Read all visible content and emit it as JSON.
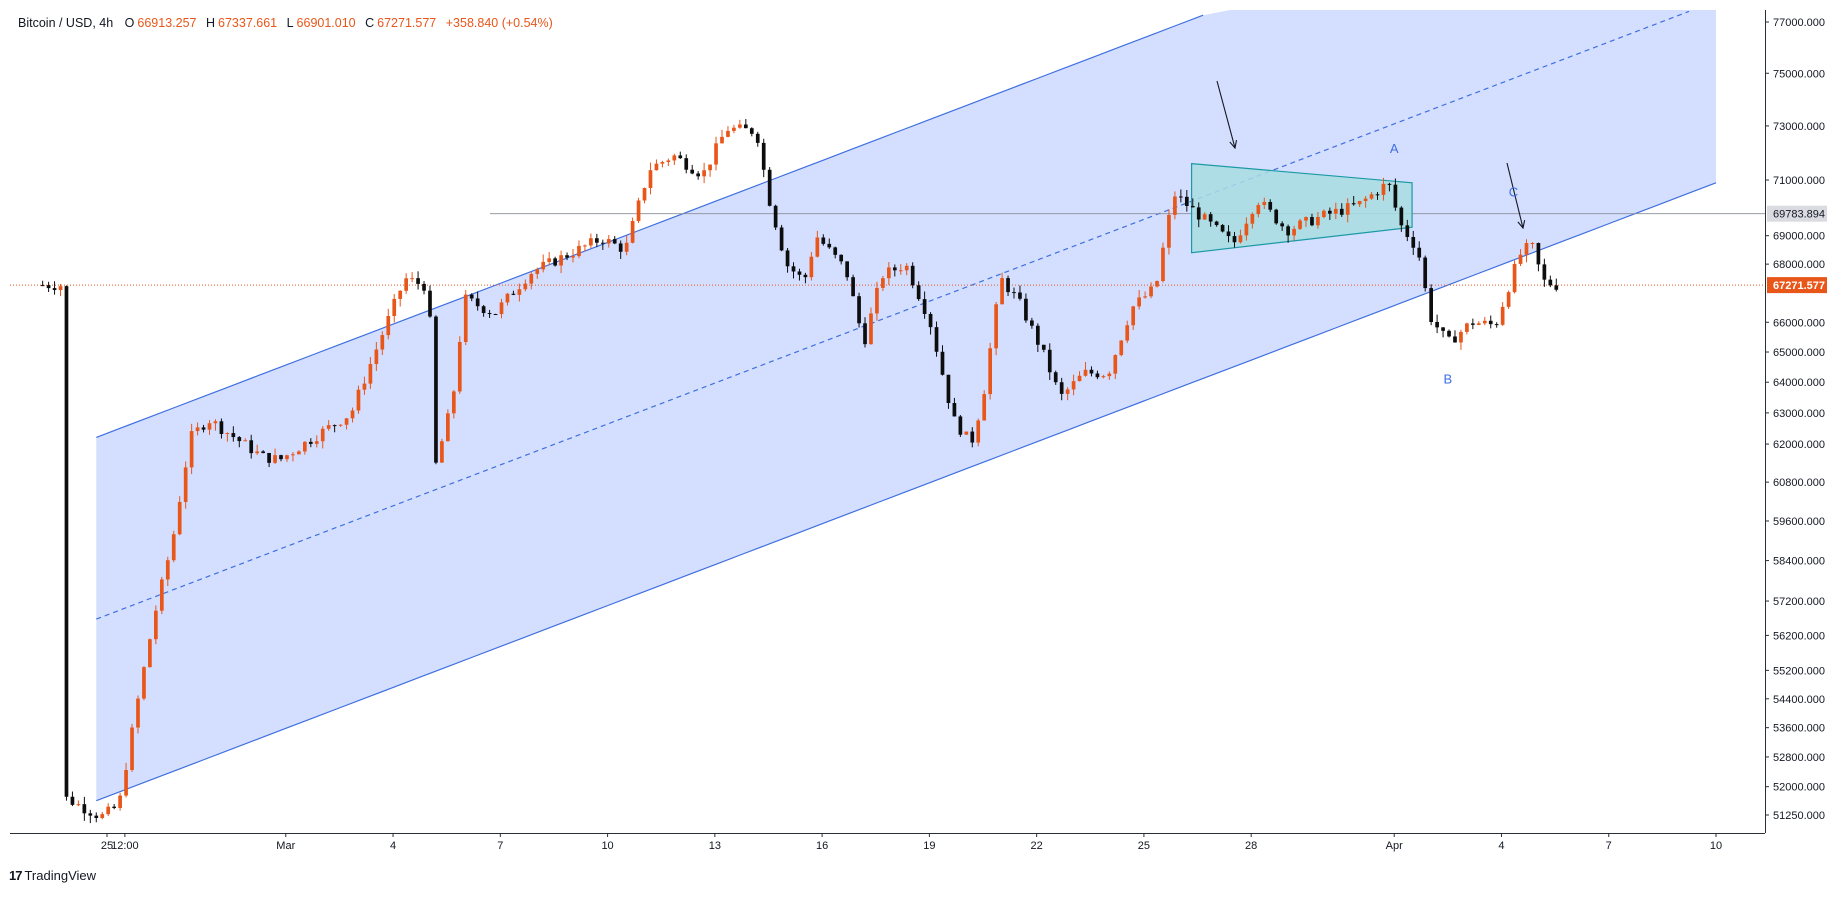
{
  "legend": {
    "symbol": "Bitcoin / USD, 4h",
    "open_label": "O",
    "open": "66913.257",
    "high_label": "H",
    "high": "67337.661",
    "low_label": "L",
    "low": "66901.010",
    "close_label": "C",
    "close": "67271.577",
    "change": "+358.840 (+0.54%)"
  },
  "brand": {
    "name": "TradingView",
    "icon": "tradingview-logo-icon"
  },
  "colors": {
    "up": "#e8561a",
    "down": "#0d0d0d",
    "channel_fill": "#cfdcff",
    "channel_line": "#3f6fe0",
    "triangle_fill": "#a8dde2",
    "triangle_line": "#1b9aa5",
    "price_line": "#e8561a",
    "label_blue": "#3f6fe0"
  },
  "chart_data": {
    "type": "candlestick",
    "title": "Bitcoin / USD, 4h",
    "y_axis_ticks": [
      "77000.000",
      "75000.000",
      "73000.000",
      "71000.000",
      "69000.000",
      "68000.000",
      "66000.000",
      "65000.000",
      "64000.000",
      "63000.000",
      "62000.000",
      "60800.000",
      "59600.000",
      "58400.000",
      "57200.000",
      "56200.000",
      "55200.000",
      "54400.000",
      "53600.000",
      "52800.000",
      "52000.000",
      "51250.000"
    ],
    "x_axis_ticks": [
      "25",
      "12:00",
      "Mar",
      "4",
      "7",
      "10",
      "13",
      "16",
      "19",
      "22",
      "25",
      "28",
      "Apr",
      "4",
      "7",
      "10"
    ],
    "ylim": [
      50700,
      77600
    ],
    "scale": "log",
    "price_marker": {
      "label": "67271.577",
      "value": 67271.577
    },
    "level_marker": {
      "label": "69783.894",
      "value": 69783.894
    },
    "wave_labels": [
      {
        "text": "A",
        "date": "Apr 1",
        "price": 72000
      },
      {
        "text": "B",
        "date": "Apr 2",
        "price": 63950
      },
      {
        "text": "C",
        "date": "Apr 4",
        "price": 70400
      }
    ],
    "candle_keypoints": [
      {
        "time": "Feb 24 00:00",
        "price": 51700
      },
      {
        "time": "Feb 25 00:00",
        "price": 51200
      },
      {
        "time": "Feb 25 12:00",
        "price": 51500
      },
      {
        "time": "Feb 26 00:00",
        "price": 54200
      },
      {
        "time": "Feb 26 12:00",
        "price": 56800
      },
      {
        "time": "Feb 27 00:00",
        "price": 59000
      },
      {
        "time": "Feb 27 12:00",
        "price": 62200
      },
      {
        "time": "Feb 28 00:00",
        "price": 62800
      },
      {
        "time": "Feb 29 12:00",
        "price": 61600
      },
      {
        "time": "Mar 1 00:00",
        "price": 61500
      },
      {
        "time": "Mar 3 00:00",
        "price": 63000
      },
      {
        "time": "Mar 4 12:00",
        "price": 67500
      },
      {
        "time": "Mar 5 04:00",
        "price": 67200
      },
      {
        "time": "Mar 5 08:00",
        "price": 61200
      },
      {
        "time": "Mar 5 20:00",
        "price": 63400
      },
      {
        "time": "Mar 6 04:00",
        "price": 66800
      },
      {
        "time": "Mar 7 00:00",
        "price": 66300
      },
      {
        "time": "Mar 8 00:00",
        "price": 67700
      },
      {
        "time": "Mar 9 00:00",
        "price": 68300
      },
      {
        "time": "Mar 10 00:00",
        "price": 68900
      },
      {
        "time": "Mar 10 16:00",
        "price": 68500
      },
      {
        "time": "Mar 11 08:00",
        "price": 71400
      },
      {
        "time": "Mar 12 00:00",
        "price": 71900
      },
      {
        "time": "Mar 12 20:00",
        "price": 71200
      },
      {
        "time": "Mar 13 12:00",
        "price": 72900
      },
      {
        "time": "Mar 14 08:00",
        "price": 72800
      },
      {
        "time": "Mar 14 16:00",
        "price": 70400
      },
      {
        "time": "Mar 15 04:00",
        "price": 68000
      },
      {
        "time": "Mar 15 16:00",
        "price": 67400
      },
      {
        "time": "Mar 16 00:00",
        "price": 69000
      },
      {
        "time": "Mar 16 20:00",
        "price": 67800
      },
      {
        "time": "Mar 17 08:00",
        "price": 65300
      },
      {
        "time": "Mar 17 20:00",
        "price": 67600
      },
      {
        "time": "Mar 18 12:00",
        "price": 68000
      },
      {
        "time": "Mar 19 04:00",
        "price": 66100
      },
      {
        "time": "Mar 19 20:00",
        "price": 62800
      },
      {
        "time": "Mar 20 08:00",
        "price": 62000
      },
      {
        "time": "Mar 20 16:00",
        "price": 63500
      },
      {
        "time": "Mar 21 04:00",
        "price": 67500
      },
      {
        "time": "Mar 21 16:00",
        "price": 66700
      },
      {
        "time": "Mar 22 08:00",
        "price": 65000
      },
      {
        "time": "Mar 22 20:00",
        "price": 63500
      },
      {
        "time": "Mar 23 12:00",
        "price": 64300
      },
      {
        "time": "Mar 24 04:00",
        "price": 64300
      },
      {
        "time": "Mar 24 20:00",
        "price": 66500
      },
      {
        "time": "Mar 25 12:00",
        "price": 67200
      },
      {
        "time": "Mar 26 00:00",
        "price": 70500
      },
      {
        "time": "Mar 26 20:00",
        "price": 69600
      },
      {
        "time": "Mar 27 16:00",
        "price": 68700
      },
      {
        "time": "Mar 28 08:00",
        "price": 70300
      },
      {
        "time": "Mar 29 04:00",
        "price": 69200
      },
      {
        "time": "Mar 30 04:00",
        "price": 69700
      },
      {
        "time": "Mar 31 04:00",
        "price": 70100
      },
      {
        "time": "Apr 1 00:00",
        "price": 70900
      },
      {
        "time": "Apr 1 08:00",
        "price": 69400
      },
      {
        "time": "Apr 1 20:00",
        "price": 68500
      },
      {
        "time": "Apr 2 04:00",
        "price": 66200
      },
      {
        "time": "Apr 2 16:00",
        "price": 65300
      },
      {
        "time": "Apr 3 08:00",
        "price": 66000
      },
      {
        "time": "Apr 4 00:00",
        "price": 65900
      },
      {
        "time": "Apr 4 16:00",
        "price": 68300
      },
      {
        "time": "Apr 5 00:00",
        "price": 68700
      },
      {
        "time": "Apr 5 08:00",
        "price": 67400
      },
      {
        "time": "Apr 5 16:00",
        "price": 67272
      }
    ],
    "channel": {
      "lower": [
        {
          "time": "Feb 26 00:00",
          "price": 52100
        },
        {
          "time": "Apr 10 00:00",
          "price": 70900
        }
      ],
      "offset_percent_upper": 20.5
    },
    "triangle": {
      "upper": [
        {
          "time": "Mar 26 08:00",
          "price": 71600
        },
        {
          "time": "Apr 1 12:00",
          "price": 70900
        }
      ],
      "lower": [
        {
          "time": "Mar 26 08:00",
          "price": 68400
        },
        {
          "time": "Apr 1 12:00",
          "price": 69300
        }
      ]
    }
  }
}
